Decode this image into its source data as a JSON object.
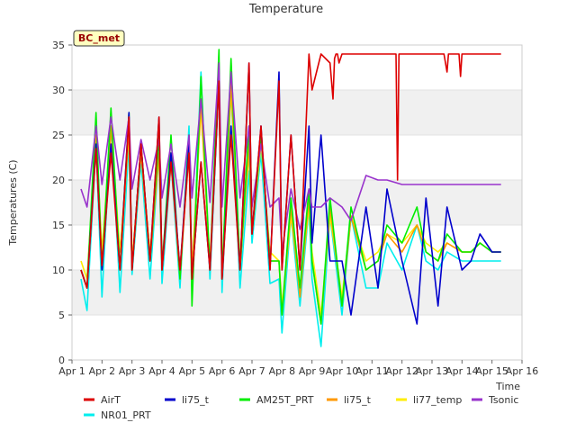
{
  "chart_data": {
    "type": "line",
    "title": "Temperature",
    "xlabel": "Time",
    "ylabel": "Temperatures (C)",
    "station_label": "BC_met",
    "xlim": [
      1,
      16
    ],
    "ylim": [
      0,
      35
    ],
    "grid": "horizontal bands",
    "legend_placement": "bottom",
    "x_ticks": [
      {
        "x": 1,
        "label": "Apr 1"
      },
      {
        "x": 2,
        "label": "Apr 2"
      },
      {
        "x": 3,
        "label": "Apr 3"
      },
      {
        "x": 4,
        "label": "Apr 4"
      },
      {
        "x": 5,
        "label": "Apr 5"
      },
      {
        "x": 6,
        "label": "Apr 6"
      },
      {
        "x": 7,
        "label": "Apr 7"
      },
      {
        "x": 8,
        "label": "Apr 8"
      },
      {
        "x": 9,
        "label": "Apr 9"
      },
      {
        "x": 10,
        "label": "Apr 10"
      },
      {
        "x": 11,
        "label": "Apr 11"
      },
      {
        "x": 12,
        "label": "Apr 12"
      },
      {
        "x": 13,
        "label": "Apr 13"
      },
      {
        "x": 14,
        "label": "Apr 14"
      },
      {
        "x": 15,
        "label": "Apr 15"
      },
      {
        "x": 16,
        "label": "Apr 16"
      }
    ],
    "y_ticks": [
      {
        "y": 0,
        "label": "0"
      },
      {
        "y": 5,
        "label": "5"
      },
      {
        "y": 10,
        "label": "10"
      },
      {
        "y": 15,
        "label": "15"
      },
      {
        "y": 20,
        "label": "20"
      },
      {
        "y": 25,
        "label": "25"
      },
      {
        "y": 30,
        "label": "30"
      },
      {
        "y": 35,
        "label": "35"
      }
    ],
    "series": [
      {
        "name": "AirT",
        "color": "#dd0000",
        "x": [
          1.3,
          1.5,
          1.8,
          2.0,
          2.3,
          2.6,
          2.9,
          3.0,
          3.3,
          3.6,
          3.9,
          4.0,
          4.3,
          4.6,
          4.9,
          5.0,
          5.3,
          5.6,
          5.9,
          6.0,
          6.3,
          6.6,
          6.9,
          7.0,
          7.3,
          7.6,
          7.9,
          8.0,
          8.3,
          8.6,
          8.9,
          9.0,
          9.3,
          9.6,
          9.7,
          9.75,
          9.8,
          9.85,
          9.9,
          10.0,
          10.3,
          10.35,
          10.45,
          10.5,
          10.8,
          11.5,
          11.8,
          11.85,
          11.9,
          11.95,
          12.0,
          12.4,
          12.9,
          13.0,
          13.4,
          13.5,
          13.55,
          13.6,
          13.65,
          13.7,
          13.9,
          13.95,
          14.0,
          14.2,
          14.5,
          14.8,
          15.0,
          15.3
        ],
        "y": [
          10,
          8,
          23.5,
          10.5,
          23,
          10,
          27,
          10,
          24,
          11,
          27,
          10,
          22,
          10,
          23,
          9,
          22,
          10,
          31,
          9,
          25,
          10,
          33,
          14,
          26,
          10,
          31,
          10,
          25,
          10,
          34,
          30,
          34,
          33,
          29,
          33.5,
          34,
          34,
          33,
          34,
          34,
          34,
          34,
          34,
          34,
          34,
          34,
          20,
          34,
          34,
          34,
          34,
          34,
          34,
          34,
          32,
          34,
          34,
          34,
          34,
          34,
          31.5,
          34,
          34,
          34,
          34,
          34,
          34
        ]
      },
      {
        "name": "li75_t",
        "color": "#0000cc",
        "x": [
          1.3,
          1.5,
          1.8,
          2.0,
          2.3,
          2.6,
          2.9,
          3.0,
          3.3,
          3.6,
          3.9,
          4.0,
          4.3,
          4.6,
          4.9,
          5.0,
          5.3,
          5.6,
          5.9,
          6.0,
          6.3,
          6.6,
          6.9,
          7.0,
          7.3,
          7.6,
          7.9,
          8.0,
          8.3,
          8.6,
          8.9,
          9.0,
          9.3,
          9.6,
          10.0,
          10.3,
          10.8,
          11.2,
          11.5,
          12.0,
          12.5,
          12.8,
          13.2,
          13.5,
          14.0,
          14.3,
          14.6,
          15.0,
          15.3
        ],
        "y": [
          10,
          8,
          24,
          10,
          24,
          10,
          27.5,
          10,
          24,
          11,
          27,
          10,
          23,
          10,
          24,
          9,
          22,
          10,
          31,
          9,
          26,
          10,
          33,
          14,
          26,
          10,
          32,
          10,
          25,
          10,
          26,
          13,
          25,
          11,
          11,
          5,
          17,
          8,
          19,
          11,
          4,
          18,
          6,
          17,
          10,
          11,
          14,
          12,
          12
        ]
      },
      {
        "name": "AM25T_PRT",
        "color": "#00ee00",
        "x": [
          1.3,
          1.5,
          1.8,
          2.0,
          2.3,
          2.6,
          2.9,
          3.0,
          3.3,
          3.6,
          3.9,
          4.0,
          4.3,
          4.6,
          4.9,
          5.0,
          5.3,
          5.6,
          5.9,
          6.0,
          6.3,
          6.6,
          6.9,
          7.0,
          7.3,
          7.6,
          7.9,
          8.0,
          8.3,
          8.6,
          8.9,
          9.0,
          9.3,
          9.6,
          10.0,
          10.3,
          10.8,
          11.2,
          11.5,
          12.0,
          12.5,
          12.8,
          13.2,
          13.5,
          14.0,
          14.3,
          14.6,
          15.0,
          15.3
        ],
        "y": [
          10,
          8,
          27.5,
          10,
          28,
          10,
          27.5,
          10,
          24,
          11,
          25,
          10,
          25,
          9,
          25,
          6,
          31.5,
          10,
          34.5,
          9,
          33.5,
          10,
          26,
          14,
          25,
          11,
          11,
          5,
          18,
          8,
          19,
          11,
          4,
          18,
          6,
          17,
          10,
          11,
          15,
          13,
          17,
          12,
          11,
          14,
          12,
          12,
          13,
          12,
          12
        ]
      },
      {
        "name": "li75_t",
        "color": "#ff9900",
        "x": [
          1.3,
          1.5,
          1.8,
          2.0,
          2.3,
          2.6,
          2.9,
          3.0,
          3.3,
          3.6,
          3.9,
          4.0,
          4.3,
          4.6,
          4.9,
          5.0,
          5.3,
          5.6,
          5.9,
          6.0,
          6.3,
          6.6,
          6.9,
          7.0,
          7.3,
          7.6,
          7.9,
          8.0,
          8.3,
          8.6,
          8.9,
          9.0,
          9.3,
          9.6,
          10.0,
          10.3,
          10.8,
          11.2,
          11.5,
          12.0,
          12.5,
          12.8,
          13.2,
          13.5,
          14.0,
          14.3,
          14.6,
          15.0,
          15.3
        ],
        "y": [
          10,
          8,
          25,
          10,
          26,
          10,
          26,
          10,
          23,
          11,
          23,
          10,
          23,
          9,
          24,
          9,
          29,
          10,
          32,
          9,
          31,
          10,
          24,
          14,
          25,
          11,
          11,
          5,
          17,
          7,
          18,
          11,
          4,
          17,
          6,
          16,
          10,
          11,
          14,
          12,
          15,
          12,
          11,
          13,
          12,
          12,
          13,
          12,
          12
        ]
      },
      {
        "name": "li77_temp",
        "color": "#ffee00",
        "x": [
          1.3,
          1.5,
          1.8,
          2.0,
          2.3,
          2.6,
          2.9,
          3.0,
          3.3,
          3.6,
          3.9,
          4.0,
          4.3,
          4.6,
          4.9,
          5.0,
          5.3,
          5.6,
          5.9,
          6.0,
          6.3,
          6.6,
          6.9,
          7.0,
          7.3,
          7.6,
          7.9,
          8.0,
          8.3,
          8.6,
          8.9,
          9.0,
          9.3,
          9.6,
          10.0,
          10.3,
          10.8,
          11.2,
          11.5,
          12.0,
          12.5,
          12.8,
          13.2,
          13.5,
          14.0,
          14.3,
          14.6,
          15.0,
          15.3
        ],
        "y": [
          11,
          9,
          25,
          12,
          26,
          12,
          25,
          11,
          23,
          12,
          23,
          11,
          22,
          10,
          23,
          10,
          28,
          11,
          31,
          10,
          30,
          11,
          23,
          14,
          24,
          12,
          11,
          6,
          16,
          8,
          17,
          12,
          5,
          16,
          7,
          16,
          11,
          12,
          14,
          13,
          15,
          13,
          12,
          13,
          12,
          12,
          13,
          12,
          12
        ]
      },
      {
        "name": "NR01_PRT",
        "color": "#00eeee",
        "x": [
          1.3,
          1.5,
          1.8,
          2.0,
          2.3,
          2.6,
          2.9,
          3.0,
          3.3,
          3.6,
          3.9,
          4.0,
          4.3,
          4.6,
          4.9,
          5.0,
          5.3,
          5.6,
          5.9,
          6.0,
          6.3,
          6.6,
          6.9,
          7.0,
          7.3,
          7.6,
          7.9,
          8.0,
          8.3,
          8.6,
          8.9,
          9.0,
          9.3,
          9.6,
          10.0,
          10.3,
          10.8,
          11.2,
          11.5,
          12.0,
          12.5,
          12.8,
          13.2,
          13.5,
          14.0,
          14.3,
          14.6,
          15.0,
          15.3
        ],
        "y": [
          9,
          5.5,
          24,
          7,
          26,
          7.5,
          24,
          9.5,
          22,
          9,
          23,
          8.5,
          22,
          8,
          26,
          8,
          32,
          9,
          31,
          7.5,
          30,
          8,
          21,
          13,
          23,
          8.5,
          9,
          3,
          16,
          6,
          17,
          9,
          1.5,
          16,
          5,
          16,
          8,
          8,
          13,
          10,
          15,
          11,
          10,
          12,
          11,
          11,
          11,
          11,
          11
        ]
      },
      {
        "name": "Tsonic",
        "color": "#9933cc",
        "x": [
          1.3,
          1.5,
          1.8,
          2.0,
          2.3,
          2.6,
          2.9,
          3.0,
          3.3,
          3.6,
          3.9,
          4.0,
          4.3,
          4.6,
          4.9,
          5.0,
          5.3,
          5.6,
          5.9,
          6.0,
          6.3,
          6.6,
          6.9,
          7.0,
          7.3,
          7.6,
          7.9,
          8.0,
          8.3,
          8.6,
          8.9,
          9.0,
          9.3,
          9.6,
          10.0,
          10.3,
          10.8,
          11.2,
          11.5,
          12.0,
          12.5,
          12.8,
          13.2,
          13.5,
          14.0,
          14.3,
          14.6,
          15.0,
          15.3
        ],
        "y": [
          19,
          17,
          26,
          19.5,
          27,
          20,
          27,
          19,
          24.5,
          20,
          24.5,
          18,
          24,
          17,
          25,
          18,
          29,
          17.5,
          33,
          17,
          32,
          18,
          26,
          17,
          24,
          17,
          18,
          12,
          19,
          14.5,
          19,
          17,
          17,
          18,
          17,
          15.5,
          20.5,
          20,
          20,
          19.5,
          19.5,
          19.5,
          19.5,
          19.5,
          19.5,
          19.5,
          19.5,
          19.5,
          19.5
        ]
      }
    ]
  }
}
